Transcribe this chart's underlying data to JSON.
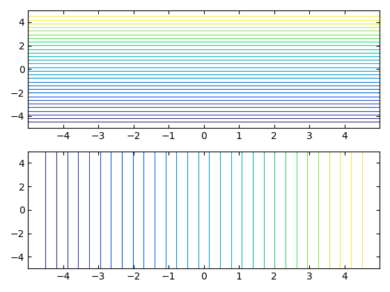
{
  "n_lines": 30,
  "x_range": [
    -5,
    5
  ],
  "y_range": [
    -5,
    5
  ],
  "ylim": [
    -5,
    5
  ],
  "xlim": [
    -5,
    5
  ],
  "colormap": "viridis",
  "figsize": [
    5.6,
    4.2
  ],
  "dpi": 100,
  "linewidth": 0.8,
  "top_y_min": -4.5,
  "top_y_max": 4.5,
  "bottom_x_min": -4.5,
  "bottom_x_max": 4.5
}
